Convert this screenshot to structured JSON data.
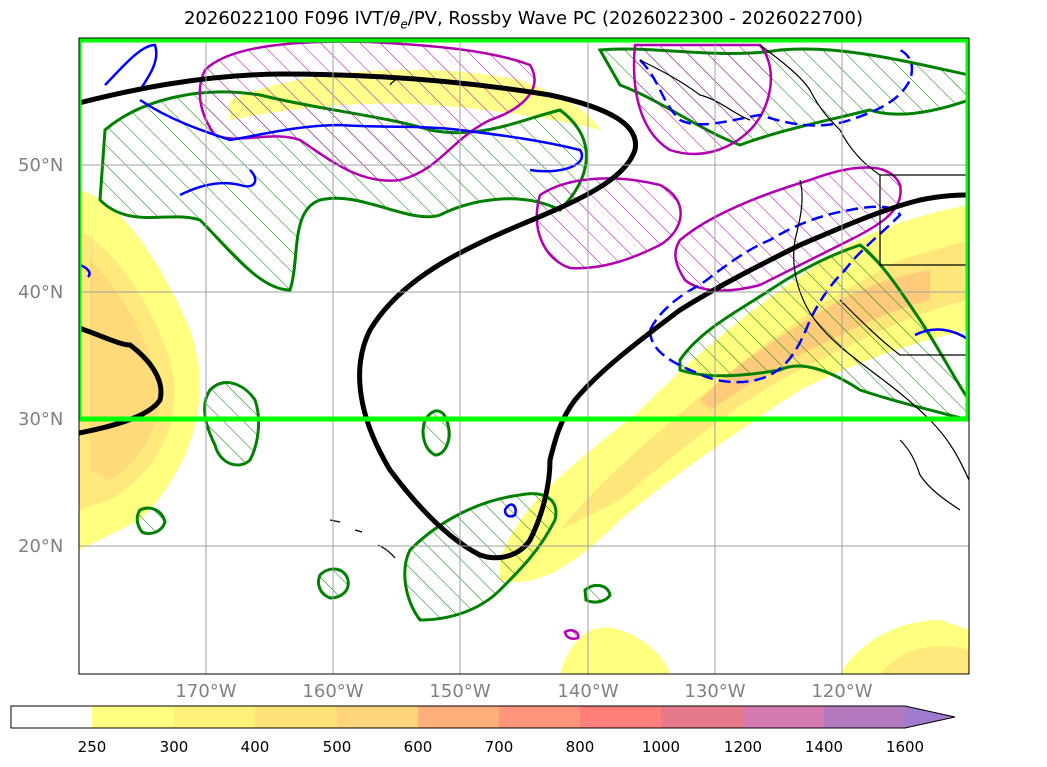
{
  "title": {
    "main": "2026022100 F096 IVT/",
    "theta": "θ",
    "theta_sub": "e",
    "rest": "/PV, Rossby Wave PC (2026022300 - 2026022700)"
  },
  "axes": {
    "lat_labels": [
      "50°N",
      "40°N",
      "30°N",
      "20°N"
    ],
    "lon_labels": [
      "170°W",
      "160°W",
      "150°W",
      "140°W",
      "130°W",
      "120°W"
    ]
  },
  "colorbar": {
    "ticks": [
      "250",
      "300",
      "400",
      "500",
      "600",
      "700",
      "800",
      "1000",
      "1200",
      "1400",
      "1600"
    ],
    "colors": [
      "#ffffff",
      "#ffff80",
      "#fff07a",
      "#ffe27a",
      "#ffd47a",
      "#ffb07a",
      "#ff957a",
      "#ff7f7a",
      "#e67a8a",
      "#d57ab0",
      "#b47ac0",
      "#a07acc"
    ]
  },
  "legend_colors": {
    "highlight_box": "#00ff00",
    "pc_contour": "#000000",
    "positive_pv": "#008000",
    "theta_e": "#b000b0",
    "negative_contour": "#0000ff"
  }
}
